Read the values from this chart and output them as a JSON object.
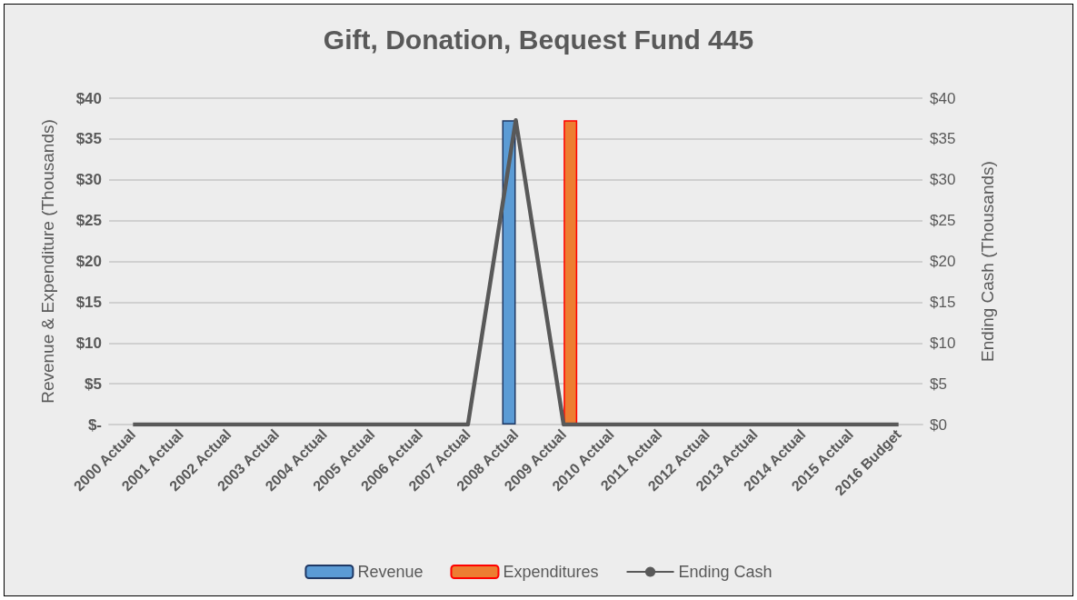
{
  "chart_data": {
    "type": "bar",
    "title": "Gift, Donation, Bequest Fund 445",
    "ylabel": "Revenue & Expenditure (Thousands)",
    "y2label": "Ending Cash (Thousands)",
    "categories": [
      "2000 Actual",
      "2001 Actual",
      "2002 Actual",
      "2003 Actual",
      "2004 Actual",
      "2005 Actual",
      "2006 Actual",
      "2007 Actual",
      "2008 Actual",
      "2009 Actual",
      "2010 Actual",
      "2011 Actual",
      "2012 Actual",
      "2013 Actual",
      "2014 Actual",
      "2015 Actual",
      "2016 Budget"
    ],
    "series": [
      {
        "name": "Revenue",
        "color": "#5b9bd5",
        "values": [
          0,
          0,
          0,
          0,
          0,
          0,
          0,
          0,
          37.3,
          0,
          0,
          0,
          0,
          0,
          0,
          0,
          0
        ]
      },
      {
        "name": "Expenditures",
        "color": "#ed7d31",
        "values": [
          0,
          0,
          0,
          0,
          0,
          0,
          0,
          0,
          0,
          37.3,
          0,
          0,
          0,
          0,
          0,
          0,
          0
        ]
      },
      {
        "name": "Ending Cash",
        "type": "line",
        "axis": "y2",
        "color": "#595959",
        "values": [
          0,
          0,
          0,
          0,
          0,
          0,
          0,
          0,
          37.3,
          0,
          0,
          0,
          0,
          0,
          0,
          0,
          0
        ]
      }
    ],
    "ylim": [
      0,
      40
    ],
    "yticks": [
      {
        "value": 0,
        "label": "$-"
      },
      {
        "value": 5,
        "label": "$5"
      },
      {
        "value": 10,
        "label": "$10"
      },
      {
        "value": 15,
        "label": "$15"
      },
      {
        "value": 20,
        "label": "$20"
      },
      {
        "value": 25,
        "label": "$25"
      },
      {
        "value": 30,
        "label": "$30"
      },
      {
        "value": 35,
        "label": "$35"
      },
      {
        "value": 40,
        "label": "$40"
      }
    ],
    "y2lim": [
      0,
      40
    ],
    "y2ticks": [
      {
        "value": 0,
        "label": "$0"
      },
      {
        "value": 5,
        "label": "$5"
      },
      {
        "value": 10,
        "label": "$10"
      },
      {
        "value": 15,
        "label": "$15"
      },
      {
        "value": 20,
        "label": "$20"
      },
      {
        "value": 25,
        "label": "$25"
      },
      {
        "value": 30,
        "label": "$30"
      },
      {
        "value": 35,
        "label": "$35"
      },
      {
        "value": 40,
        "label": "$40"
      }
    ],
    "grid": "y",
    "legend": "bottom",
    "marker": "none",
    "line_style": "solid"
  }
}
